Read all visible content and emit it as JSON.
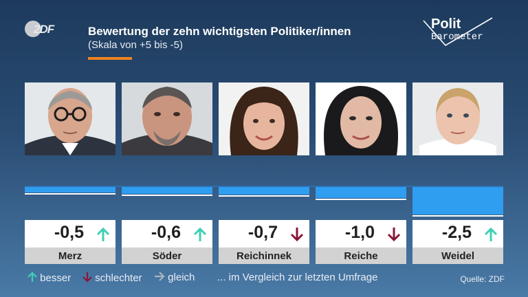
{
  "header": {
    "title": "Bewertung der zehn wichtigsten Politiker/innen",
    "subtitle": "(Skala von +5 bis -5)",
    "zdf_logo_text": "2DF",
    "polit_line1": "Polit",
    "polit_line2": "Barometer"
  },
  "chart_data": {
    "type": "bar",
    "title": "Bewertung der zehn wichtigsten Politiker/innen",
    "subtitle": "(Skala von +5 bis -5)",
    "categories": [
      "Merz",
      "Söder",
      "Reichinnek",
      "Reiche",
      "Weidel"
    ],
    "values": [
      -0.5,
      -0.6,
      -0.7,
      -1.0,
      -2.5
    ],
    "value_labels": [
      "-0,5",
      "-0,6",
      "-0,7",
      "-1,0",
      "-2,5"
    ],
    "trend": [
      "up",
      "up",
      "down",
      "down",
      "up"
    ],
    "ylim": [
      -5,
      5
    ],
    "colors": {
      "bar": "#2f9df0",
      "up": "#3ecfb5",
      "down": "#8a1538",
      "same": "#a9b4bf"
    }
  },
  "legend": {
    "better": "besser",
    "worse": "schlechter",
    "same": "gleich",
    "note": "... im Vergleich zur letzten Umfrage"
  },
  "source": "Quelle: ZDF"
}
